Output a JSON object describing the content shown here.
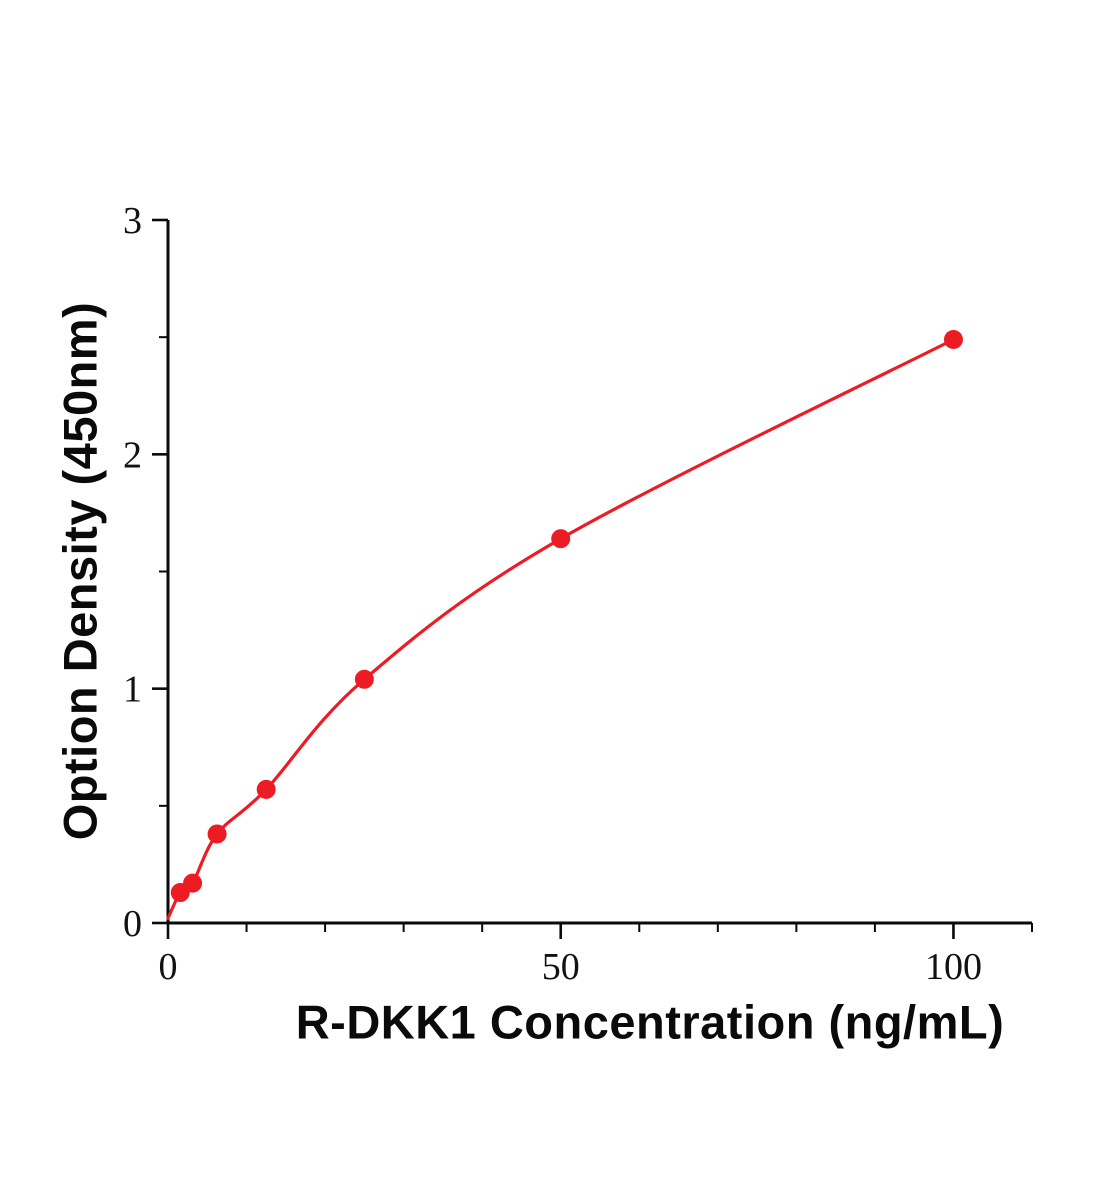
{
  "chart_data": {
    "type": "line",
    "title": "",
    "xlabel": "R-DKK1 Concentration (ng/mL)",
    "ylabel": "Option Density (450nm)",
    "x": [
      1.56,
      3.13,
      6.25,
      12.5,
      25,
      50,
      100
    ],
    "y": [
      0.13,
      0.17,
      0.38,
      0.57,
      1.04,
      1.64,
      2.49
    ],
    "curve_start": [
      0,
      0.02
    ],
    "xlim": [
      0,
      110
    ],
    "ylim": [
      0,
      3
    ],
    "x_major_ticks": [
      0,
      50,
      100
    ],
    "x_minor_step": 10,
    "y_major_ticks": [
      0,
      1,
      2,
      3
    ],
    "y_minor_step": 0.5,
    "line_color": "#ed1c24",
    "axis_color": "#0a0a0a",
    "marker": "circle",
    "grid": false,
    "legend": null
  }
}
